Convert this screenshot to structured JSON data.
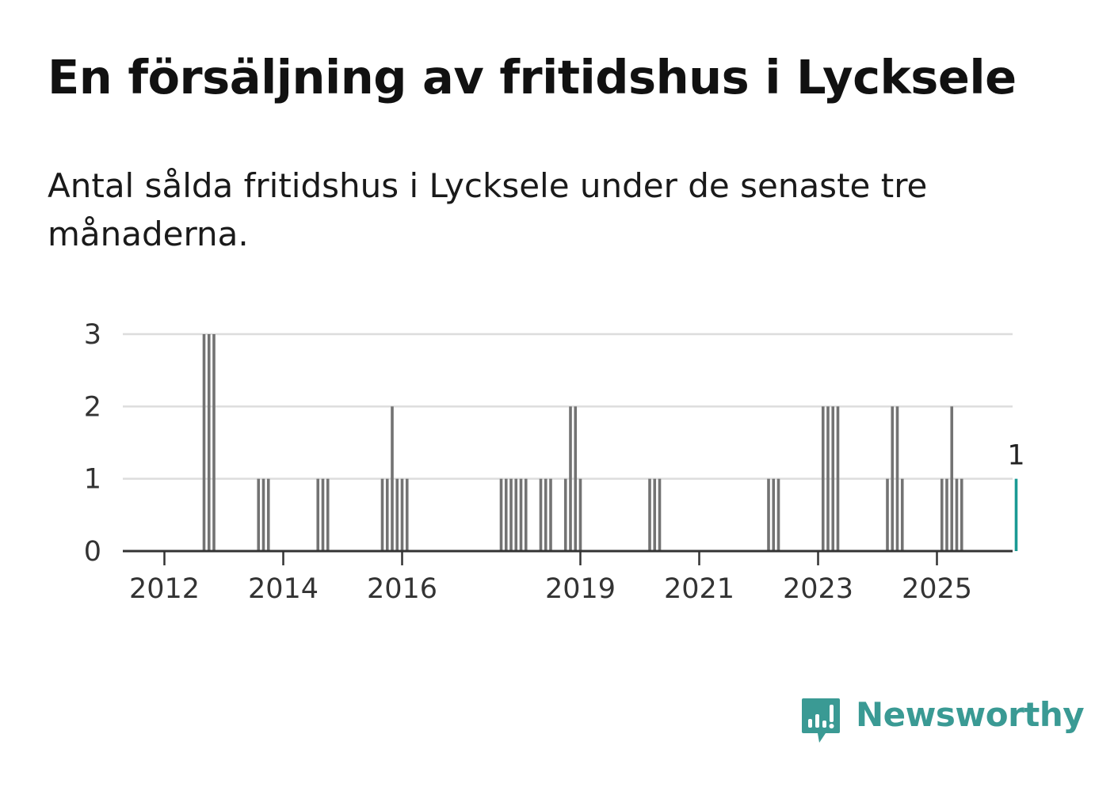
{
  "header": {
    "title": "En försäljning av fritidshus i Lycksele",
    "subtitle": "Antal sålda fritidshus i Lycksele under de senaste tre månaderna."
  },
  "brand": {
    "name": "Newsworthy",
    "color": "#3a9a94",
    "icon": "newsworthy-logo-icon"
  },
  "colors": {
    "bar": "#737373",
    "highlight": "#1a9a94",
    "grid": "#dddddd",
    "axis": "#333333"
  },
  "chart_data": {
    "type": "bar",
    "title": "En försäljning av fritidshus i Lycksele",
    "xlabel": "",
    "ylabel": "",
    "ylim": [
      0,
      3
    ],
    "y_ticks": [
      0,
      1,
      2,
      3
    ],
    "x_ticks": [
      "2012",
      "2014",
      "2016",
      "2019",
      "2021",
      "2023",
      "2025"
    ],
    "grid": true,
    "legend": "none",
    "series": [
      {
        "values": [
          {
            "x": "2012-09",
            "y": 3
          },
          {
            "x": "2012-10",
            "y": 3
          },
          {
            "x": "2012-11",
            "y": 3
          },
          {
            "x": "2013-08",
            "y": 1
          },
          {
            "x": "2013-09",
            "y": 1
          },
          {
            "x": "2013-10",
            "y": 1
          },
          {
            "x": "2014-08",
            "y": 1
          },
          {
            "x": "2014-09",
            "y": 1
          },
          {
            "x": "2014-10",
            "y": 1
          },
          {
            "x": "2015-09",
            "y": 1
          },
          {
            "x": "2015-10",
            "y": 1
          },
          {
            "x": "2015-11",
            "y": 2
          },
          {
            "x": "2015-12",
            "y": 1
          },
          {
            "x": "2016-01",
            "y": 1
          },
          {
            "x": "2016-02",
            "y": 1
          },
          {
            "x": "2017-09",
            "y": 1
          },
          {
            "x": "2017-10",
            "y": 1
          },
          {
            "x": "2017-11",
            "y": 1
          },
          {
            "x": "2017-12",
            "y": 1
          },
          {
            "x": "2018-01",
            "y": 1
          },
          {
            "x": "2018-02",
            "y": 1
          },
          {
            "x": "2018-05",
            "y": 1
          },
          {
            "x": "2018-06",
            "y": 1
          },
          {
            "x": "2018-07",
            "y": 1
          },
          {
            "x": "2018-10",
            "y": 1
          },
          {
            "x": "2018-11",
            "y": 2
          },
          {
            "x": "2018-12",
            "y": 2
          },
          {
            "x": "2019-01",
            "y": 1
          },
          {
            "x": "2020-03",
            "y": 1
          },
          {
            "x": "2020-04",
            "y": 1
          },
          {
            "x": "2020-05",
            "y": 1
          },
          {
            "x": "2022-03",
            "y": 1
          },
          {
            "x": "2022-04",
            "y": 1
          },
          {
            "x": "2022-05",
            "y": 1
          },
          {
            "x": "2023-02",
            "y": 2
          },
          {
            "x": "2023-03",
            "y": 2
          },
          {
            "x": "2023-04",
            "y": 2
          },
          {
            "x": "2023-05",
            "y": 2
          },
          {
            "x": "2024-03",
            "y": 1
          },
          {
            "x": "2024-04",
            "y": 2
          },
          {
            "x": "2024-05",
            "y": 2
          },
          {
            "x": "2024-06",
            "y": 1
          },
          {
            "x": "2025-02",
            "y": 1
          },
          {
            "x": "2025-03",
            "y": 1
          },
          {
            "x": "2025-04",
            "y": 2
          },
          {
            "x": "2025-05",
            "y": 1
          },
          {
            "x": "2025-06",
            "y": 1
          },
          {
            "x": "2026-05",
            "y": 1
          }
        ],
        "highlight_last": true
      }
    ],
    "annotations": [
      {
        "x": "2026-05",
        "text": "1"
      }
    ]
  }
}
